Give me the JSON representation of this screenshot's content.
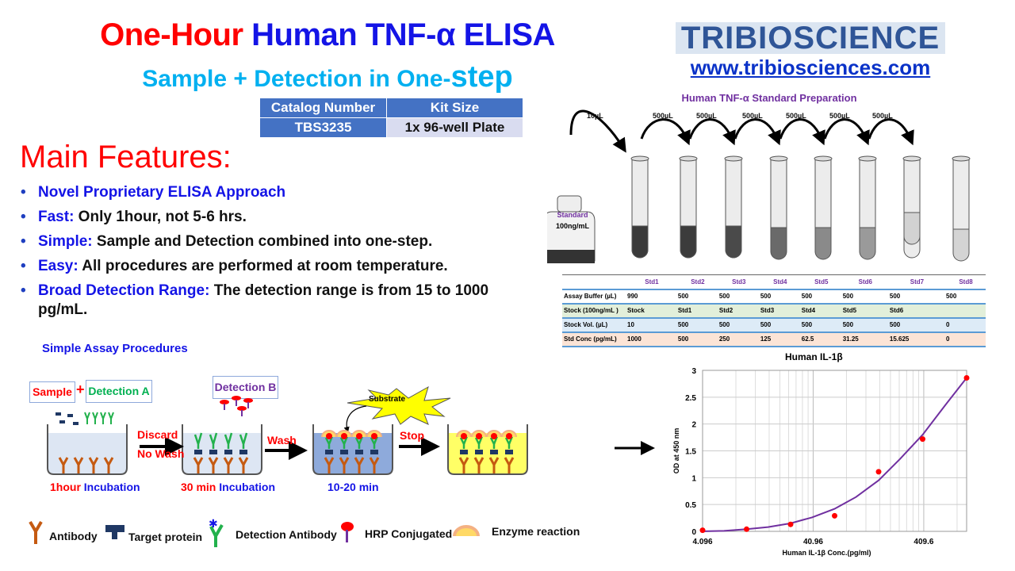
{
  "header": {
    "title_part1": "One-Hour",
    "title_part2": "Human TNF-α ELISA",
    "subtitle": "Sample + Detection in One-",
    "subtitle_big": "step"
  },
  "catalog": {
    "headers": [
      "Catalog Number",
      "Kit Size"
    ],
    "values": [
      "TBS3235",
      "1x 96-well Plate"
    ]
  },
  "features": {
    "heading": "Main Features:",
    "items": [
      {
        "label": "Novel Proprietary ELISA Approach",
        "text": ""
      },
      {
        "label": "Fast:",
        "text": " Only 1hour,  not 5-6 hrs."
      },
      {
        "label": "Simple:",
        "text": " Sample and Detection combined into one-step."
      },
      {
        "label": "Easy:",
        "text": " All procedures are performed at room temperature."
      },
      {
        "label": "Broad Detection Range:",
        "text": " The detection range is from 15 to 1000 pg/mL."
      }
    ]
  },
  "brand": {
    "logo": "TRIBIOSCIENCE",
    "url": "www.tribiosciences.com"
  },
  "standard_prep": {
    "title": "Human TNF-α Standard Preparation",
    "vial_label": "Standard",
    "vial_conc": "100ng/mL",
    "transfers": [
      "10µL",
      "500µL",
      "500µL",
      "500µL",
      "500µL",
      "500µL",
      "500µL"
    ],
    "columns": [
      "Std1",
      "Std2",
      "Std3",
      "Std4",
      "Std5",
      "Std6",
      "Std7",
      "Std8"
    ],
    "rows": [
      {
        "label": "Assay Buffer (µL)",
        "values": [
          "990",
          "500",
          "500",
          "500",
          "500",
          "500",
          "500",
          "500"
        ]
      },
      {
        "label": "Stock (100ng/mL )",
        "values": [
          "Stock",
          "Std1",
          "Std2",
          "Std3",
          "Std4",
          "Std5",
          "Std6",
          ""
        ]
      },
      {
        "label": "Stock Vol. (µL)",
        "values": [
          "10",
          "500",
          "500",
          "500",
          "500",
          "500",
          "500",
          "0"
        ]
      },
      {
        "label": "Std Conc (pg/mL)",
        "values": [
          "1000",
          "500",
          "250",
          "125",
          "62.5",
          "31.25",
          "15.625",
          "0"
        ]
      }
    ]
  },
  "procedures": {
    "title": "Simple Assay Procedures",
    "sample": "Sample",
    "plus": "+",
    "detection_a": "Detection A",
    "detection_b": "Detection B",
    "substrate": "Substrate",
    "discard": "Discard",
    "no_wash": "No Wash",
    "wash": "Wash",
    "stop": "Stop",
    "step1_time": "1hour",
    "step1_label": " Incubation",
    "step2_time": "30 min",
    "step2_label": " Incubation",
    "step3": "10-20 min"
  },
  "legend": [
    "Antibody",
    "Target protein",
    "Detection Antibody",
    "HRP Conjugated",
    "Enzyme reaction"
  ],
  "colors": {
    "title_red": "#ff0000",
    "title_blue": "#1414e6",
    "subtitle": "#00b0f0",
    "table_blue": "#4472c4",
    "purple": "#7030a0",
    "curve": "#7030a0",
    "points": "#ff0000"
  },
  "chart_data": {
    "type": "scatter",
    "title": "Human IL-1β",
    "xlabel": "Human IL-1β Conc.(pg/ml)",
    "ylabel": "OD at 450 nm",
    "xscale": "log",
    "xlim": [
      4.096,
      1000
    ],
    "ylim": [
      0,
      3
    ],
    "grid": true,
    "xticks": [
      "4.096",
      "40.96",
      "409.6"
    ],
    "yticks": [
      "0",
      "0.5",
      "1",
      "1.5",
      "2",
      "2.5",
      "3"
    ],
    "points": {
      "x": [
        4.096,
        10.24,
        25.6,
        64,
        160,
        400,
        1000
      ],
      "y": [
        0.02,
        0.04,
        0.13,
        0.29,
        1.11,
        1.72,
        2.86
      ]
    },
    "fit": {
      "x": [
        4.096,
        6.4,
        10.24,
        16,
        25.6,
        40,
        64,
        100,
        160,
        250,
        400,
        640,
        1000
      ],
      "y": [
        0,
        0.01,
        0.04,
        0.08,
        0.15,
        0.26,
        0.42,
        0.64,
        0.95,
        1.35,
        1.8,
        2.35,
        2.86
      ]
    }
  }
}
